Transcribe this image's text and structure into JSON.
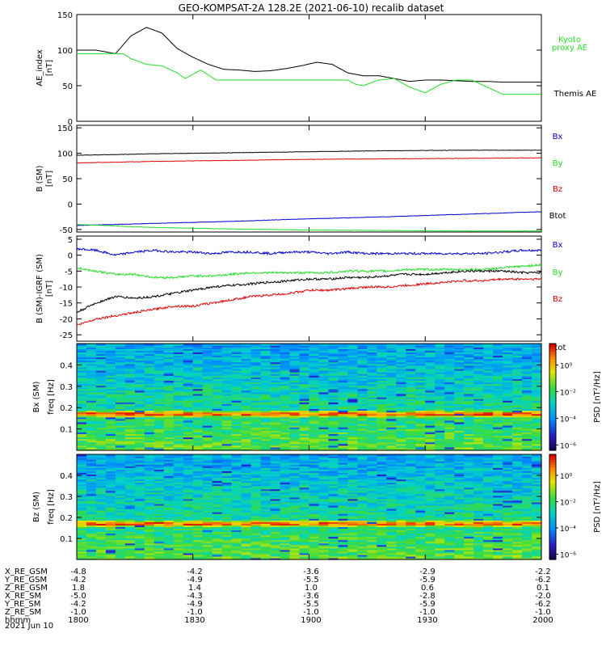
{
  "title": "GEO-KOMPSAT-2A 128.2E (2021-06-10) recalib dataset",
  "colors": {
    "black": "#000000",
    "green": "#22dd22",
    "red": "#dd0000",
    "blue": "#0000cc"
  },
  "chart_data": [
    {
      "type": "line",
      "panel": "AE",
      "ylabel": [
        "AE_index",
        "[nT]"
      ],
      "ylim": [
        0,
        150
      ],
      "yticks": [
        "0",
        "50",
        "100",
        "150"
      ],
      "xlim": [
        0,
        120
      ],
      "series": [
        {
          "name": "Themis AE",
          "color": "#000000",
          "x": [
            0,
            5,
            10,
            14,
            18,
            22,
            26,
            30,
            34,
            38,
            42,
            46,
            50,
            54,
            58,
            62,
            66,
            70,
            74,
            78,
            82,
            86,
            90,
            94,
            98,
            102,
            106,
            110,
            114,
            118,
            120
          ],
          "y": [
            100,
            100,
            95,
            120,
            132,
            124,
            102,
            90,
            80,
            73,
            72,
            70,
            71,
            74,
            78,
            83,
            80,
            68,
            64,
            64,
            60,
            56,
            58,
            58,
            57,
            56,
            56,
            55,
            55,
            55,
            55
          ]
        },
        {
          "name": "Kyoto proxy AE",
          "color": "#22dd22",
          "x": [
            0,
            12,
            14,
            18,
            22,
            26,
            28,
            32,
            36,
            42,
            50,
            58,
            66,
            70,
            72,
            74,
            78,
            82,
            86,
            90,
            94,
            98,
            102,
            106,
            110,
            114,
            118,
            120
          ],
          "y": [
            95,
            95,
            88,
            80,
            78,
            68,
            60,
            72,
            58,
            58,
            58,
            58,
            58,
            58,
            52,
            50,
            58,
            60,
            48,
            40,
            52,
            58,
            58,
            48,
            38,
            38,
            38,
            38
          ]
        }
      ]
    },
    {
      "type": "line",
      "panel": "B_SM",
      "ylabel": [
        "B (SM)",
        "[nT]"
      ],
      "ylim": [
        -55,
        155
      ],
      "yticks": [
        "-50",
        "0",
        "50",
        "100",
        "150"
      ],
      "xlim": [
        0,
        120
      ],
      "legend": [
        "Bx",
        "By",
        "Bz",
        "Btot"
      ],
      "series": [
        {
          "name": "Bx",
          "color": "#0000cc",
          "x": [
            0,
            20,
            40,
            60,
            80,
            100,
            120
          ],
          "y": [
            -42,
            -38,
            -34,
            -29,
            -25,
            -20,
            -15
          ]
        },
        {
          "name": "By",
          "color": "#22dd22",
          "x": [
            0,
            20,
            40,
            60,
            80,
            100,
            120
          ],
          "y": [
            -40,
            -46,
            -49,
            -51,
            -52,
            -53,
            -53
          ]
        },
        {
          "name": "Bz",
          "color": "#dd0000",
          "x": [
            0,
            20,
            40,
            60,
            80,
            100,
            120
          ],
          "y": [
            81,
            84,
            86,
            88,
            89,
            90,
            91
          ]
        },
        {
          "name": "Btot",
          "color": "#000000",
          "x": [
            0,
            20,
            40,
            60,
            80,
            100,
            120
          ],
          "y": [
            96,
            99,
            101,
            103,
            105,
            106,
            106
          ]
        }
      ]
    },
    {
      "type": "line",
      "panel": "dB",
      "ylabel": [
        "B (SM)-IGRF (SM)",
        "[nT]"
      ],
      "ylim": [
        -27,
        6
      ],
      "yticks": [
        "-25",
        "-20",
        "-15",
        "-10",
        "-5",
        "0",
        "5"
      ],
      "xlim": [
        0,
        120
      ],
      "legend": [
        "Bx",
        "By",
        "Bz",
        "Btot"
      ],
      "series": [
        {
          "name": "Bx",
          "color": "#0000cc",
          "x": [
            0,
            5,
            10,
            15,
            20,
            25,
            30,
            35,
            40,
            45,
            50,
            55,
            60,
            65,
            70,
            75,
            80,
            85,
            90,
            95,
            100,
            105,
            110,
            115,
            120
          ],
          "y": [
            2,
            1.5,
            0,
            1,
            1.5,
            1,
            1,
            0.5,
            1,
            1,
            0.5,
            1,
            1,
            0.5,
            1,
            0.5,
            0.5,
            0.5,
            0.5,
            0.5,
            0.5,
            0.5,
            1,
            1.5,
            1.5
          ]
        },
        {
          "name": "By",
          "color": "#22dd22",
          "x": [
            0,
            5,
            10,
            15,
            20,
            25,
            30,
            35,
            40,
            45,
            50,
            55,
            60,
            65,
            70,
            75,
            80,
            85,
            90,
            95,
            100,
            105,
            110,
            115,
            120
          ],
          "y": [
            -4,
            -5,
            -6,
            -6,
            -7,
            -7,
            -6.5,
            -6.5,
            -6,
            -5.5,
            -5.5,
            -5.5,
            -5.5,
            -5.5,
            -5,
            -5,
            -5,
            -4.5,
            -4.5,
            -4.5,
            -4.5,
            -4.5,
            -4,
            -3.5,
            -3
          ]
        },
        {
          "name": "Bz",
          "color": "#dd0000",
          "x": [
            0,
            5,
            10,
            15,
            20,
            25,
            30,
            35,
            40,
            45,
            50,
            55,
            60,
            65,
            70,
            75,
            80,
            85,
            90,
            95,
            100,
            105,
            110,
            115,
            120
          ],
          "y": [
            -22,
            -20,
            -19,
            -18,
            -17,
            -16,
            -16,
            -15,
            -14,
            -13,
            -12.5,
            -12,
            -11,
            -11,
            -10.5,
            -10,
            -10,
            -9.5,
            -9,
            -8.5,
            -8,
            -8,
            -7.5,
            -7.5,
            -7.5
          ]
        },
        {
          "name": "Btot",
          "color": "#000000",
          "x": [
            0,
            5,
            10,
            15,
            20,
            25,
            30,
            35,
            40,
            45,
            50,
            55,
            60,
            65,
            70,
            75,
            80,
            85,
            90,
            95,
            100,
            105,
            110,
            115,
            120
          ],
          "y": [
            -18,
            -15,
            -13,
            -13.5,
            -13,
            -12,
            -11,
            -10,
            -9.5,
            -9,
            -8.5,
            -8,
            -7.5,
            -7.5,
            -7,
            -7,
            -6.5,
            -6,
            -6,
            -5.5,
            -5,
            -5,
            -5,
            -5.5,
            -5.5
          ]
        }
      ]
    },
    {
      "type": "heatmap",
      "panel": "spec_Bx",
      "ylabel": [
        "Bx (SM)",
        "freq [Hz]"
      ],
      "ylim": [
        0,
        0.5
      ],
      "yticks": [
        "0.1",
        "0.2",
        "0.3",
        "0.4"
      ],
      "colorbar": {
        "label": "PSD [nT²/Hz]",
        "ticks": [
          "10⁰",
          "10⁻²",
          "10⁻⁴",
          "10⁻⁶"
        ]
      },
      "band_freq": 0.17
    },
    {
      "type": "heatmap",
      "panel": "spec_Bz",
      "ylabel": [
        "Bz (SM)",
        "freq [Hz]"
      ],
      "ylim": [
        0,
        0.5
      ],
      "yticks": [
        "0.1",
        "0.2",
        "0.3",
        "0.4"
      ],
      "colorbar": {
        "label": "PSD [nT²/Hz]",
        "ticks": [
          "10⁰",
          "10⁻²",
          "10⁻⁴",
          "10⁻⁶"
        ]
      },
      "band_freq": 0.17
    }
  ],
  "legend_ae": {
    "kyoto": [
      "Kyoto",
      "proxy AE"
    ],
    "themis": "Themis AE"
  },
  "legend_b": [
    "Bx",
    "By",
    "Bz",
    "Btot"
  ],
  "ephemeris": {
    "rows": [
      {
        "label": "X_RE_GSM",
        "values": [
          "-4.8",
          "-4.2",
          "-3.6",
          "-2.9",
          "-2.2"
        ]
      },
      {
        "label": "Y_RE_GSM",
        "values": [
          "-4.2",
          "-4.9",
          "-5.5",
          "-5.9",
          "-6.2"
        ]
      },
      {
        "label": "Z_RE_GSM",
        "values": [
          "1.8",
          "1.4",
          "1.0",
          "0.6",
          "0.1"
        ]
      },
      {
        "label": "X_RE_SM",
        "values": [
          "-5.0",
          "-4.3",
          "-3.6",
          "-2.8",
          "-2.0"
        ]
      },
      {
        "label": "Y_RE_SM",
        "values": [
          "-4.2",
          "-4.9",
          "-5.5",
          "-5.9",
          "-6.2"
        ]
      },
      {
        "label": "Z_RE_SM",
        "values": [
          "-1.0",
          "-1.0",
          "-1.0",
          "-1.0",
          "-1.0"
        ]
      },
      {
        "label": "hhmm",
        "values": [
          "1800",
          "1830",
          "1900",
          "1930",
          "2000"
        ]
      }
    ],
    "date": "2021 Jun 10"
  }
}
